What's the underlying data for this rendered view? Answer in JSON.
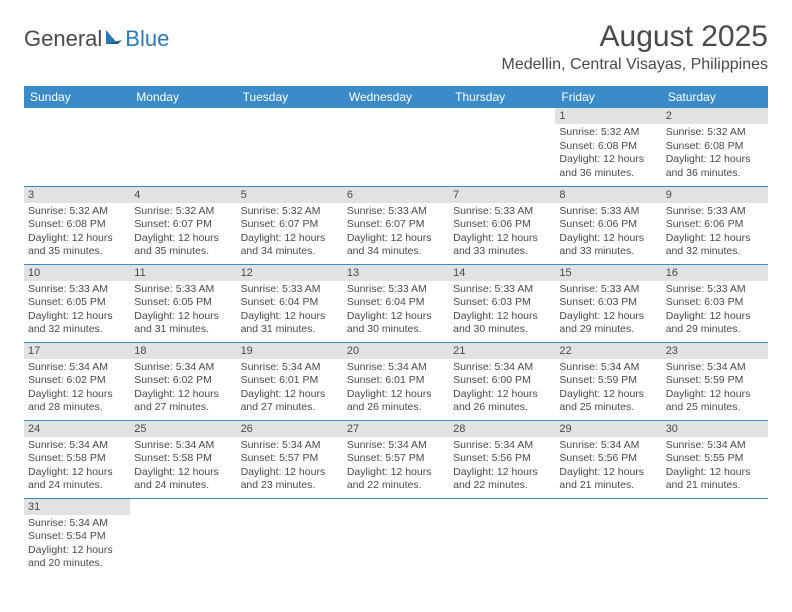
{
  "logo": {
    "text_gray": "General",
    "text_blue": "Blue"
  },
  "title": "August 2025",
  "location": "Medellin, Central Visayas, Philippines",
  "colors": {
    "header_bg": "#3b8bc8",
    "header_text": "#ffffff",
    "daybar_bg": "#e2e2e2",
    "text": "#4a4a4a",
    "row_border": "#3b8bc8",
    "page_bg": "#ffffff"
  },
  "day_names": [
    "Sunday",
    "Monday",
    "Tuesday",
    "Wednesday",
    "Thursday",
    "Friday",
    "Saturday"
  ],
  "weeks": [
    [
      null,
      null,
      null,
      null,
      null,
      {
        "n": "1",
        "sr": "Sunrise: 5:32 AM",
        "ss": "Sunset: 6:08 PM",
        "dl": "Daylight: 12 hours and 36 minutes."
      },
      {
        "n": "2",
        "sr": "Sunrise: 5:32 AM",
        "ss": "Sunset: 6:08 PM",
        "dl": "Daylight: 12 hours and 36 minutes."
      }
    ],
    [
      {
        "n": "3",
        "sr": "Sunrise: 5:32 AM",
        "ss": "Sunset: 6:08 PM",
        "dl": "Daylight: 12 hours and 35 minutes."
      },
      {
        "n": "4",
        "sr": "Sunrise: 5:32 AM",
        "ss": "Sunset: 6:07 PM",
        "dl": "Daylight: 12 hours and 35 minutes."
      },
      {
        "n": "5",
        "sr": "Sunrise: 5:32 AM",
        "ss": "Sunset: 6:07 PM",
        "dl": "Daylight: 12 hours and 34 minutes."
      },
      {
        "n": "6",
        "sr": "Sunrise: 5:33 AM",
        "ss": "Sunset: 6:07 PM",
        "dl": "Daylight: 12 hours and 34 minutes."
      },
      {
        "n": "7",
        "sr": "Sunrise: 5:33 AM",
        "ss": "Sunset: 6:06 PM",
        "dl": "Daylight: 12 hours and 33 minutes."
      },
      {
        "n": "8",
        "sr": "Sunrise: 5:33 AM",
        "ss": "Sunset: 6:06 PM",
        "dl": "Daylight: 12 hours and 33 minutes."
      },
      {
        "n": "9",
        "sr": "Sunrise: 5:33 AM",
        "ss": "Sunset: 6:06 PM",
        "dl": "Daylight: 12 hours and 32 minutes."
      }
    ],
    [
      {
        "n": "10",
        "sr": "Sunrise: 5:33 AM",
        "ss": "Sunset: 6:05 PM",
        "dl": "Daylight: 12 hours and 32 minutes."
      },
      {
        "n": "11",
        "sr": "Sunrise: 5:33 AM",
        "ss": "Sunset: 6:05 PM",
        "dl": "Daylight: 12 hours and 31 minutes."
      },
      {
        "n": "12",
        "sr": "Sunrise: 5:33 AM",
        "ss": "Sunset: 6:04 PM",
        "dl": "Daylight: 12 hours and 31 minutes."
      },
      {
        "n": "13",
        "sr": "Sunrise: 5:33 AM",
        "ss": "Sunset: 6:04 PM",
        "dl": "Daylight: 12 hours and 30 minutes."
      },
      {
        "n": "14",
        "sr": "Sunrise: 5:33 AM",
        "ss": "Sunset: 6:03 PM",
        "dl": "Daylight: 12 hours and 30 minutes."
      },
      {
        "n": "15",
        "sr": "Sunrise: 5:33 AM",
        "ss": "Sunset: 6:03 PM",
        "dl": "Daylight: 12 hours and 29 minutes."
      },
      {
        "n": "16",
        "sr": "Sunrise: 5:33 AM",
        "ss": "Sunset: 6:03 PM",
        "dl": "Daylight: 12 hours and 29 minutes."
      }
    ],
    [
      {
        "n": "17",
        "sr": "Sunrise: 5:34 AM",
        "ss": "Sunset: 6:02 PM",
        "dl": "Daylight: 12 hours and 28 minutes."
      },
      {
        "n": "18",
        "sr": "Sunrise: 5:34 AM",
        "ss": "Sunset: 6:02 PM",
        "dl": "Daylight: 12 hours and 27 minutes."
      },
      {
        "n": "19",
        "sr": "Sunrise: 5:34 AM",
        "ss": "Sunset: 6:01 PM",
        "dl": "Daylight: 12 hours and 27 minutes."
      },
      {
        "n": "20",
        "sr": "Sunrise: 5:34 AM",
        "ss": "Sunset: 6:01 PM",
        "dl": "Daylight: 12 hours and 26 minutes."
      },
      {
        "n": "21",
        "sr": "Sunrise: 5:34 AM",
        "ss": "Sunset: 6:00 PM",
        "dl": "Daylight: 12 hours and 26 minutes."
      },
      {
        "n": "22",
        "sr": "Sunrise: 5:34 AM",
        "ss": "Sunset: 5:59 PM",
        "dl": "Daylight: 12 hours and 25 minutes."
      },
      {
        "n": "23",
        "sr": "Sunrise: 5:34 AM",
        "ss": "Sunset: 5:59 PM",
        "dl": "Daylight: 12 hours and 25 minutes."
      }
    ],
    [
      {
        "n": "24",
        "sr": "Sunrise: 5:34 AM",
        "ss": "Sunset: 5:58 PM",
        "dl": "Daylight: 12 hours and 24 minutes."
      },
      {
        "n": "25",
        "sr": "Sunrise: 5:34 AM",
        "ss": "Sunset: 5:58 PM",
        "dl": "Daylight: 12 hours and 24 minutes."
      },
      {
        "n": "26",
        "sr": "Sunrise: 5:34 AM",
        "ss": "Sunset: 5:57 PM",
        "dl": "Daylight: 12 hours and 23 minutes."
      },
      {
        "n": "27",
        "sr": "Sunrise: 5:34 AM",
        "ss": "Sunset: 5:57 PM",
        "dl": "Daylight: 12 hours and 22 minutes."
      },
      {
        "n": "28",
        "sr": "Sunrise: 5:34 AM",
        "ss": "Sunset: 5:56 PM",
        "dl": "Daylight: 12 hours and 22 minutes."
      },
      {
        "n": "29",
        "sr": "Sunrise: 5:34 AM",
        "ss": "Sunset: 5:56 PM",
        "dl": "Daylight: 12 hours and 21 minutes."
      },
      {
        "n": "30",
        "sr": "Sunrise: 5:34 AM",
        "ss": "Sunset: 5:55 PM",
        "dl": "Daylight: 12 hours and 21 minutes."
      }
    ],
    [
      {
        "n": "31",
        "sr": "Sunrise: 5:34 AM",
        "ss": "Sunset: 5:54 PM",
        "dl": "Daylight: 12 hours and 20 minutes."
      },
      null,
      null,
      null,
      null,
      null,
      null
    ]
  ]
}
